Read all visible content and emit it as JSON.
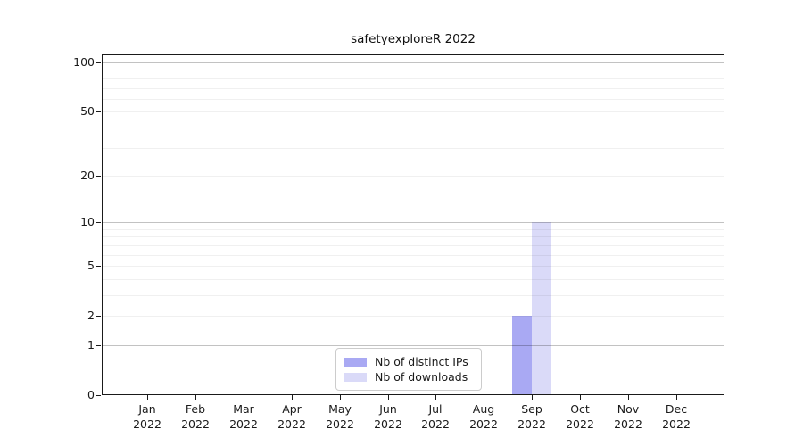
{
  "title": "safetyexploreR 2022",
  "chart_data": {
    "type": "bar",
    "title": "safetyexploreR 2022",
    "xlabel": "",
    "ylabel": "",
    "yscale": "log1p",
    "ylim": [
      0,
      112
    ],
    "yticks": [
      0,
      1,
      2,
      5,
      10,
      20,
      50,
      100
    ],
    "major_gridlines": [
      1,
      10,
      100
    ],
    "minor_gridlines": [
      2,
      3,
      4,
      5,
      6,
      7,
      8,
      9,
      20,
      30,
      40,
      50,
      60,
      70,
      80,
      90
    ],
    "grid": "on",
    "legend_position": "bottom-center-inside",
    "categories": [
      {
        "month": "Jan",
        "year": "2022"
      },
      {
        "month": "Feb",
        "year": "2022"
      },
      {
        "month": "Mar",
        "year": "2022"
      },
      {
        "month": "Apr",
        "year": "2022"
      },
      {
        "month": "May",
        "year": "2022"
      },
      {
        "month": "Jun",
        "year": "2022"
      },
      {
        "month": "Jul",
        "year": "2022"
      },
      {
        "month": "Aug",
        "year": "2022"
      },
      {
        "month": "Sep",
        "year": "2022"
      },
      {
        "month": "Oct",
        "year": "2022"
      },
      {
        "month": "Nov",
        "year": "2022"
      },
      {
        "month": "Dec",
        "year": "2022"
      }
    ],
    "series": [
      {
        "name": "Nb of distinct IPs",
        "color": "#a9a9f3",
        "values": [
          0,
          0,
          0,
          0,
          0,
          0,
          0,
          0,
          2,
          0,
          0,
          0
        ]
      },
      {
        "name": "Nb of downloads",
        "color": "#dadaf8",
        "values": [
          0,
          0,
          0,
          0,
          0,
          0,
          0,
          0,
          10,
          0,
          0,
          0
        ]
      }
    ]
  },
  "legend": {
    "items": [
      {
        "label": "Nb of distinct IPs",
        "color": "#a9a9f3"
      },
      {
        "label": "Nb of downloads",
        "color": "#dadaf8"
      }
    ]
  }
}
